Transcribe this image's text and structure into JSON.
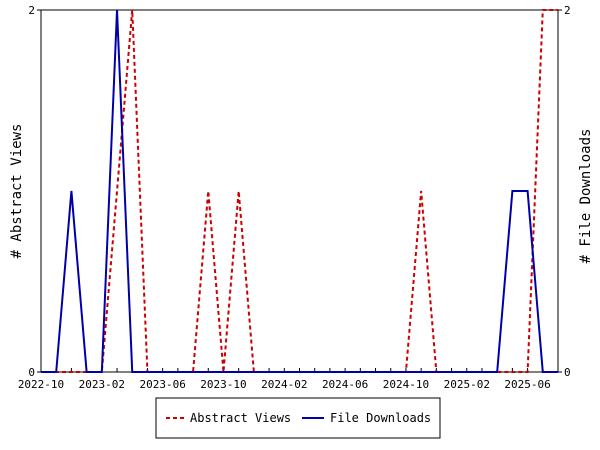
{
  "chart_data": {
    "type": "line",
    "x_labels": [
      "2022-10",
      "2023-02",
      "2023-06",
      "2023-10",
      "2024-02",
      "2024-06",
      "2024-10",
      "2025-02",
      "2025-06"
    ],
    "x_months": [
      "2022-10",
      "2022-11",
      "2022-12",
      "2023-01",
      "2023-02",
      "2023-03",
      "2023-04",
      "2023-05",
      "2023-06",
      "2023-07",
      "2023-08",
      "2023-09",
      "2023-10",
      "2023-11",
      "2023-12",
      "2024-01",
      "2024-02",
      "2024-03",
      "2024-04",
      "2024-05",
      "2024-06",
      "2024-07",
      "2024-08",
      "2024-09",
      "2024-10",
      "2024-11",
      "2024-12",
      "2025-01",
      "2025-02",
      "2025-03",
      "2025-04",
      "2025-05",
      "2025-06",
      "2025-07",
      "2025-08"
    ],
    "ylabel_left": "# Abstract Views",
    "ylabel_right": "# File Downloads",
    "ylim_left": [
      0,
      2
    ],
    "ylim_right": [
      0,
      2
    ],
    "y_ticks_left": [
      "0",
      "2"
    ],
    "y_ticks_right": [
      "0",
      "2"
    ],
    "legend_position": "bottom-center",
    "series": [
      {
        "name": "Abstract Views",
        "color": "#cc0000",
        "style": "dashed",
        "axis": "left",
        "values": [
          0,
          0,
          0,
          0,
          0,
          1,
          2,
          0,
          0,
          0,
          0,
          1,
          0,
          1,
          0,
          0,
          0,
          0,
          0,
          0,
          0,
          0,
          0,
          0,
          0,
          1,
          0,
          0,
          0,
          0,
          0,
          0,
          0,
          2,
          2
        ]
      },
      {
        "name": "File Downloads",
        "color": "#0000aa",
        "style": "solid",
        "axis": "right",
        "values": [
          0,
          0,
          1,
          0,
          0,
          2,
          0,
          0,
          0,
          0,
          0,
          0,
          0,
          0,
          0,
          0,
          0,
          0,
          0,
          0,
          0,
          0,
          0,
          0,
          0,
          0,
          0,
          0,
          0,
          0,
          0,
          1,
          1,
          0,
          0
        ]
      }
    ]
  }
}
